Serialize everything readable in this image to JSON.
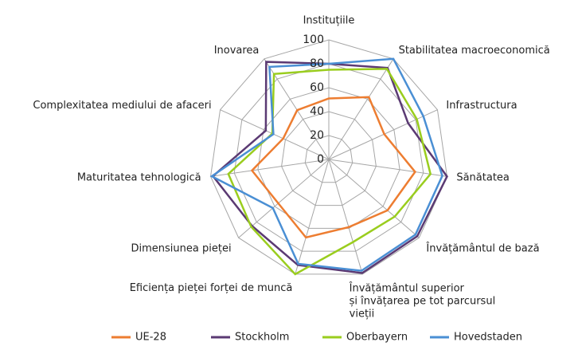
{
  "chart_data": {
    "type": "radar",
    "categories": [
      "Instituțiile",
      "Stabilitatea macroeconomică",
      "Infrastructura",
      "Sănătatea",
      "Învățământul de bază",
      "Învățământul superior\nși învățarea pe tot parcursul\nvieții",
      "Eficiența pieței forței de muncă",
      "Dimensiunea pieței",
      "Maturitatea tehnologică",
      "Complexitatea mediului de afaceri",
      "Inovarea"
    ],
    "series": [
      {
        "name": "UE-28",
        "color": "#ed7d31",
        "values": [
          51,
          62,
          51,
          73,
          65,
          59,
          68,
          56,
          65,
          42,
          49
        ]
      },
      {
        "name": "Stockholm",
        "color": "#5b3a73",
        "values": [
          80,
          91,
          73,
          100,
          98,
          99,
          92,
          85,
          98,
          58,
          97
        ]
      },
      {
        "name": "Oberbayern",
        "color": "#9acd1e",
        "values": [
          75,
          90,
          81,
          86,
          73,
          72,
          100,
          86,
          85,
          52,
          85
        ]
      },
      {
        "name": "Hovedstaden",
        "color": "#4a8fd4",
        "values": [
          80,
          100,
          87,
          96,
          96,
          97,
          91,
          62,
          99,
          51,
          92
        ]
      }
    ],
    "ylim": [
      0,
      100
    ],
    "yticks": [
      0,
      20,
      40,
      60,
      80,
      100
    ],
    "grid": true,
    "legend": "bottom"
  }
}
